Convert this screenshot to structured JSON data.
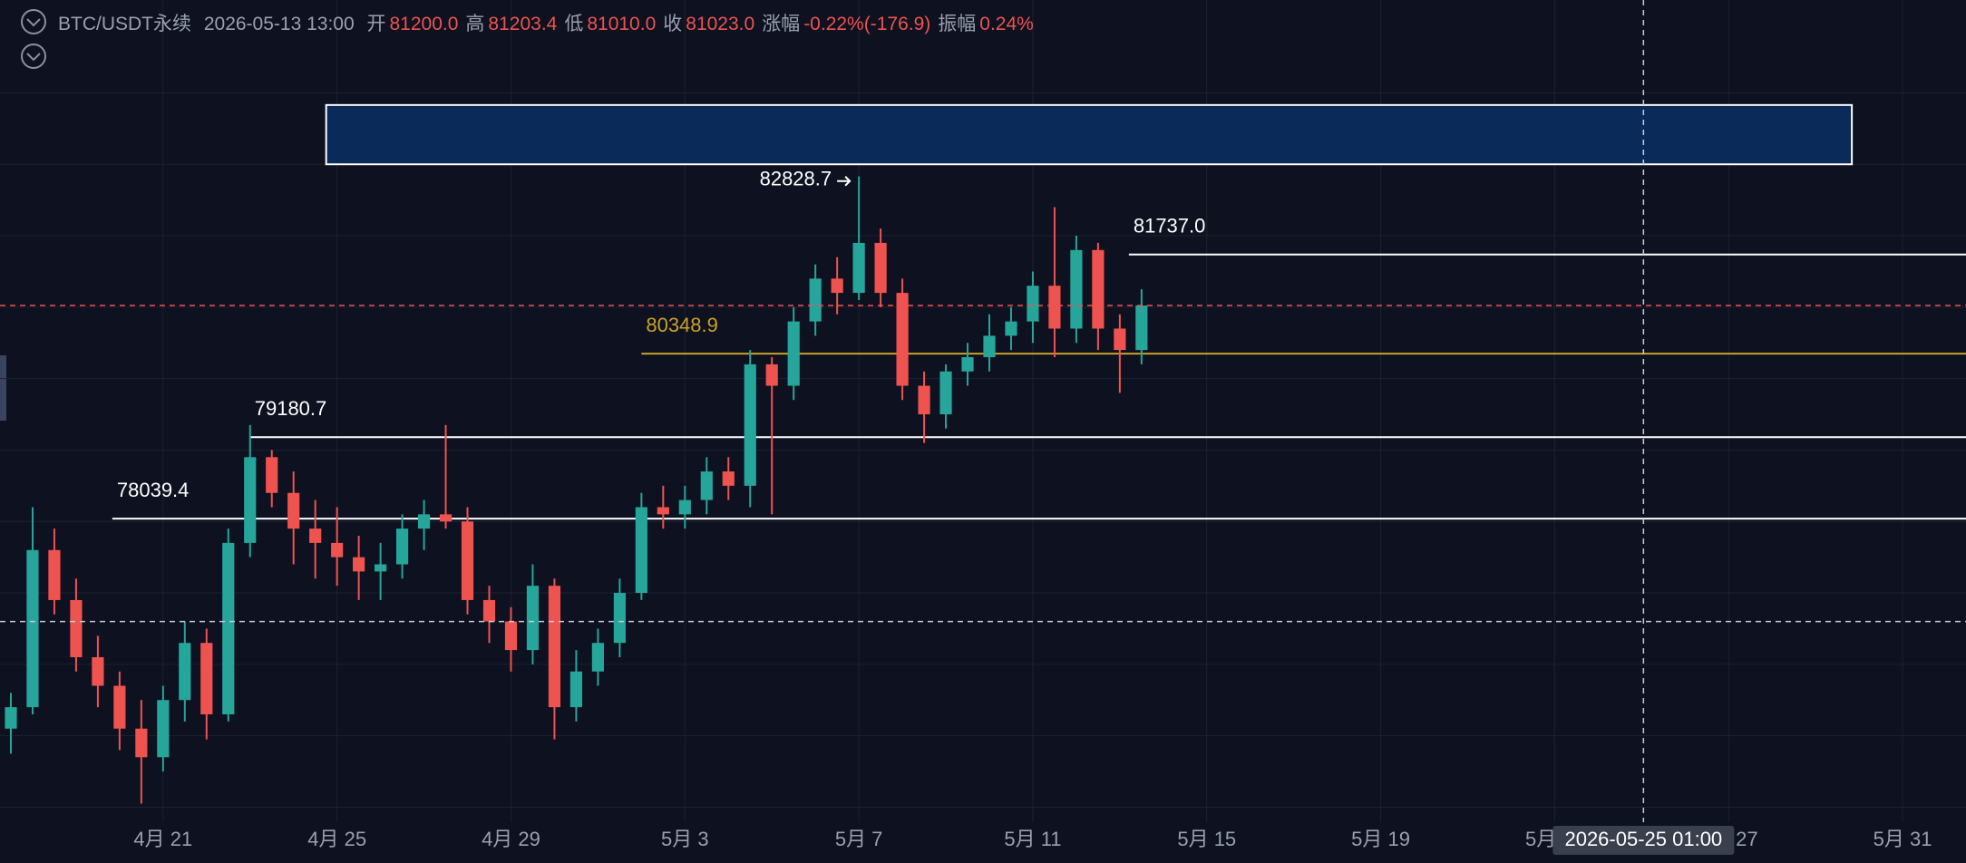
{
  "header": {
    "symbol": "BTC/USDT永续",
    "time": "2026-05-13 13:00",
    "fields": [
      {
        "label": "开",
        "value": "81200.0"
      },
      {
        "label": "高",
        "value": "81203.4"
      },
      {
        "label": "低",
        "value": "81010.0"
      },
      {
        "label": "收",
        "value": "81023.0"
      },
      {
        "label": "涨幅",
        "value": "-0.22%(-176.9)"
      },
      {
        "label": "振幅",
        "value": "0.24%"
      }
    ]
  },
  "chart_data": {
    "type": "candlestick",
    "up_color": "#26a69a",
    "down_color": "#ef5350",
    "x": [
      "2026-04-17 12:00",
      "2026-04-18 00:00",
      "2026-04-18 12:00",
      "2026-04-19 00:00",
      "2026-04-19 12:00",
      "2026-04-20 00:00",
      "2026-04-20 12:00",
      "2026-04-21 00:00",
      "2026-04-21 12:00",
      "2026-04-22 00:00",
      "2026-04-22 12:00",
      "2026-04-23 00:00",
      "2026-04-23 12:00",
      "2026-04-24 00:00",
      "2026-04-24 12:00",
      "2026-04-25 00:00",
      "2026-04-25 12:00",
      "2026-04-26 00:00",
      "2026-04-26 12:00",
      "2026-04-27 00:00",
      "2026-04-27 12:00",
      "2026-04-28 00:00",
      "2026-04-28 12:00",
      "2026-04-29 00:00",
      "2026-04-29 12:00",
      "2026-04-30 00:00",
      "2026-04-30 12:00",
      "2026-05-01 00:00",
      "2026-05-01 12:00",
      "2026-05-02 00:00",
      "2026-05-02 12:00",
      "2026-05-03 00:00",
      "2026-05-03 12:00",
      "2026-05-04 00:00",
      "2026-05-04 12:00",
      "2026-05-05 00:00",
      "2026-05-05 12:00",
      "2026-05-06 00:00",
      "2026-05-06 12:00",
      "2026-05-07 00:00",
      "2026-05-07 12:00",
      "2026-05-08 00:00",
      "2026-05-08 12:00",
      "2026-05-09 00:00",
      "2026-05-09 12:00",
      "2026-05-10 00:00",
      "2026-05-10 12:00",
      "2026-05-11 00:00",
      "2026-05-11 12:00",
      "2026-05-12 00:00",
      "2026-05-12 12:00",
      "2026-05-13 00:00",
      "2026-05-13 12:00"
    ],
    "open": [
      75100,
      75400,
      77600,
      76900,
      76100,
      75700,
      75100,
      74700,
      75500,
      76300,
      75300,
      77700,
      78900,
      78400,
      77900,
      77700,
      77500,
      77300,
      77400,
      77900,
      78100,
      78000,
      76900,
      76600,
      76200,
      77100,
      75400,
      75900,
      76300,
      77000,
      78200,
      78100,
      78300,
      78700,
      78500,
      80200,
      79900,
      80800,
      81400,
      81200,
      81900,
      81200,
      79900,
      79500,
      80100,
      80300,
      80600,
      80800,
      81300,
      80700,
      81800,
      80700,
      80400
    ],
    "high": [
      75600,
      78200,
      77900,
      77200,
      76400,
      75900,
      75500,
      75700,
      76600,
      76500,
      77900,
      79350,
      79000,
      78700,
      78300,
      78200,
      77800,
      77700,
      78100,
      78300,
      79350,
      78200,
      77100,
      76800,
      77400,
      77200,
      76200,
      76500,
      77200,
      78400,
      78500,
      78500,
      78900,
      78900,
      80400,
      80300,
      81000,
      81600,
      81700,
      82830,
      82100,
      81400,
      80100,
      80200,
      80500,
      80900,
      81000,
      81500,
      82400,
      82000,
      81900,
      80900,
      81250
    ],
    "low": [
      74750,
      75300,
      76700,
      75900,
      75400,
      74800,
      74050,
      74500,
      75200,
      74950,
      75200,
      77500,
      78200,
      77400,
      77200,
      77100,
      76900,
      76900,
      77200,
      77600,
      77900,
      76700,
      76300,
      75900,
      76000,
      74950,
      75200,
      75700,
      76100,
      76900,
      77900,
      77900,
      78100,
      78300,
      78200,
      78100,
      79700,
      80600,
      80900,
      81100,
      81000,
      79700,
      79100,
      79300,
      79900,
      80100,
      80400,
      80500,
      80300,
      80500,
      80400,
      79800,
      80200
    ],
    "close": [
      75400,
      77600,
      76900,
      76100,
      75700,
      75100,
      74700,
      75500,
      76300,
      75300,
      77700,
      78900,
      78400,
      77900,
      77700,
      77500,
      77300,
      77400,
      77900,
      78100,
      78000,
      76900,
      76600,
      76200,
      77100,
      75400,
      75900,
      76300,
      77000,
      78200,
      78100,
      78300,
      78700,
      78500,
      80200,
      79900,
      80800,
      81400,
      81200,
      81900,
      81200,
      79900,
      79500,
      80100,
      80300,
      80600,
      80800,
      81300,
      80700,
      81800,
      80700,
      80400,
      81023
    ],
    "xlim": [
      "2026-04-17 06:00",
      "2026-06-01 11:00"
    ],
    "xticks": [
      {
        "value": "2026-04-21 00:00",
        "label": "4月 21"
      },
      {
        "value": "2026-04-25 00:00",
        "label": "4月 25"
      },
      {
        "value": "2026-04-29 00:00",
        "label": "4月 29"
      },
      {
        "value": "2026-05-03 00:00",
        "label": "5月 3"
      },
      {
        "value": "2026-05-07 00:00",
        "label": "5月 7"
      },
      {
        "value": "2026-05-11 00:00",
        "label": "5月 11"
      },
      {
        "value": "2026-05-15 00:00",
        "label": "5月 15"
      },
      {
        "value": "2026-05-19 00:00",
        "label": "5月 19"
      },
      {
        "value": "2026-05-23 00:00",
        "label": "5月 23"
      },
      {
        "value": "2026-05-27 00:00",
        "label": "5月 27"
      },
      {
        "value": "2026-05-31 00:00",
        "label": "5月 31"
      }
    ],
    "ylim": [
      73790,
      85300
    ],
    "yticks": [
      74000,
      75000,
      76000,
      77000,
      78000,
      79000,
      80000,
      81000,
      82000,
      83000,
      84000
    ],
    "grid": true,
    "levels": [
      {
        "value": 81737.0,
        "label": "81737.0",
        "start": "2026-05-13 05:00",
        "color": "#ffffff"
      },
      {
        "value": 80348.9,
        "label": "80348.9",
        "start": "2026-05-02 00:00",
        "color": "#c9a227"
      },
      {
        "value": 79180.7,
        "label": "79180.7",
        "start": "2026-04-23 00:00",
        "color": "#ffffff"
      },
      {
        "value": 78039.4,
        "label": "78039.4",
        "start": "2026-04-19 20:00",
        "color": "#ffffff"
      }
    ],
    "peak_label": {
      "value": 82828.7,
      "label": "82828.7",
      "x": "2026-05-07 00:00"
    },
    "zone": {
      "y_range": [
        83000,
        83830
      ],
      "x_range": [
        "2026-04-24 18:00",
        "2026-05-29 20:00"
      ],
      "color": "#0a2a5a"
    },
    "crosshair": {
      "x": "2026-05-25 01:00",
      "y": 76600
    }
  }
}
